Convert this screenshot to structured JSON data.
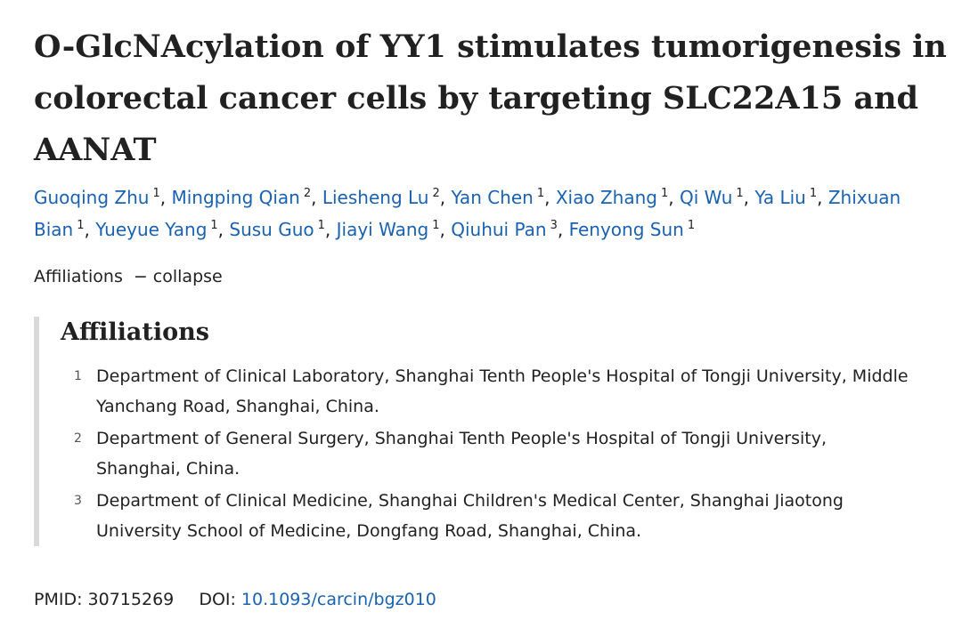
{
  "title": "O-GlcNAcylation of YY1 stimulates tumorigenesis in colorectal cancer cells by targeting SLC22A15 and AANAT",
  "authors": [
    {
      "name": "Guoqing Zhu",
      "sup": "1"
    },
    {
      "name": "Mingping Qian",
      "sup": "2"
    },
    {
      "name": "Liesheng Lu",
      "sup": "2"
    },
    {
      "name": "Yan Chen",
      "sup": "1"
    },
    {
      "name": "Xiao Zhang",
      "sup": "1"
    },
    {
      "name": "Qi Wu",
      "sup": "1"
    },
    {
      "name": "Ya Liu",
      "sup": "1"
    },
    {
      "name": "Zhixuan Bian",
      "sup": "1"
    },
    {
      "name": "Yueyue Yang",
      "sup": "1"
    },
    {
      "name": "Susu Guo",
      "sup": "1"
    },
    {
      "name": "Jiayi Wang",
      "sup": "1"
    },
    {
      "name": "Qiuhui Pan",
      "sup": "3"
    },
    {
      "name": "Fenyong Sun",
      "sup": "1"
    }
  ],
  "affiliations_toggle": {
    "label": "Affiliations",
    "dash": "−",
    "action": "collapse"
  },
  "affiliations": {
    "heading": "Affiliations",
    "items": [
      {
        "num": "1",
        "text": "Department of Clinical Laboratory, Shanghai Tenth People's Hospital of Tongji University, Middle Yanchang Road, Shanghai, China."
      },
      {
        "num": "2",
        "text": "Department of General Surgery, Shanghai Tenth People's Hospital of Tongji University, Shanghai, China."
      },
      {
        "num": "3",
        "text": "Department of Clinical Medicine, Shanghai Children's Medical Center, Shanghai Jiaotong University School of Medicine, Dongfang Road, Shanghai, China."
      }
    ]
  },
  "identifiers": {
    "pmid_label": "PMID:",
    "pmid": "30715269",
    "doi_label": "DOI:",
    "doi": "10.1093/carcin/bgz010"
  },
  "colors": {
    "link": "#1a62b0",
    "text": "#212121",
    "panel_border": "#d9d9d9"
  }
}
